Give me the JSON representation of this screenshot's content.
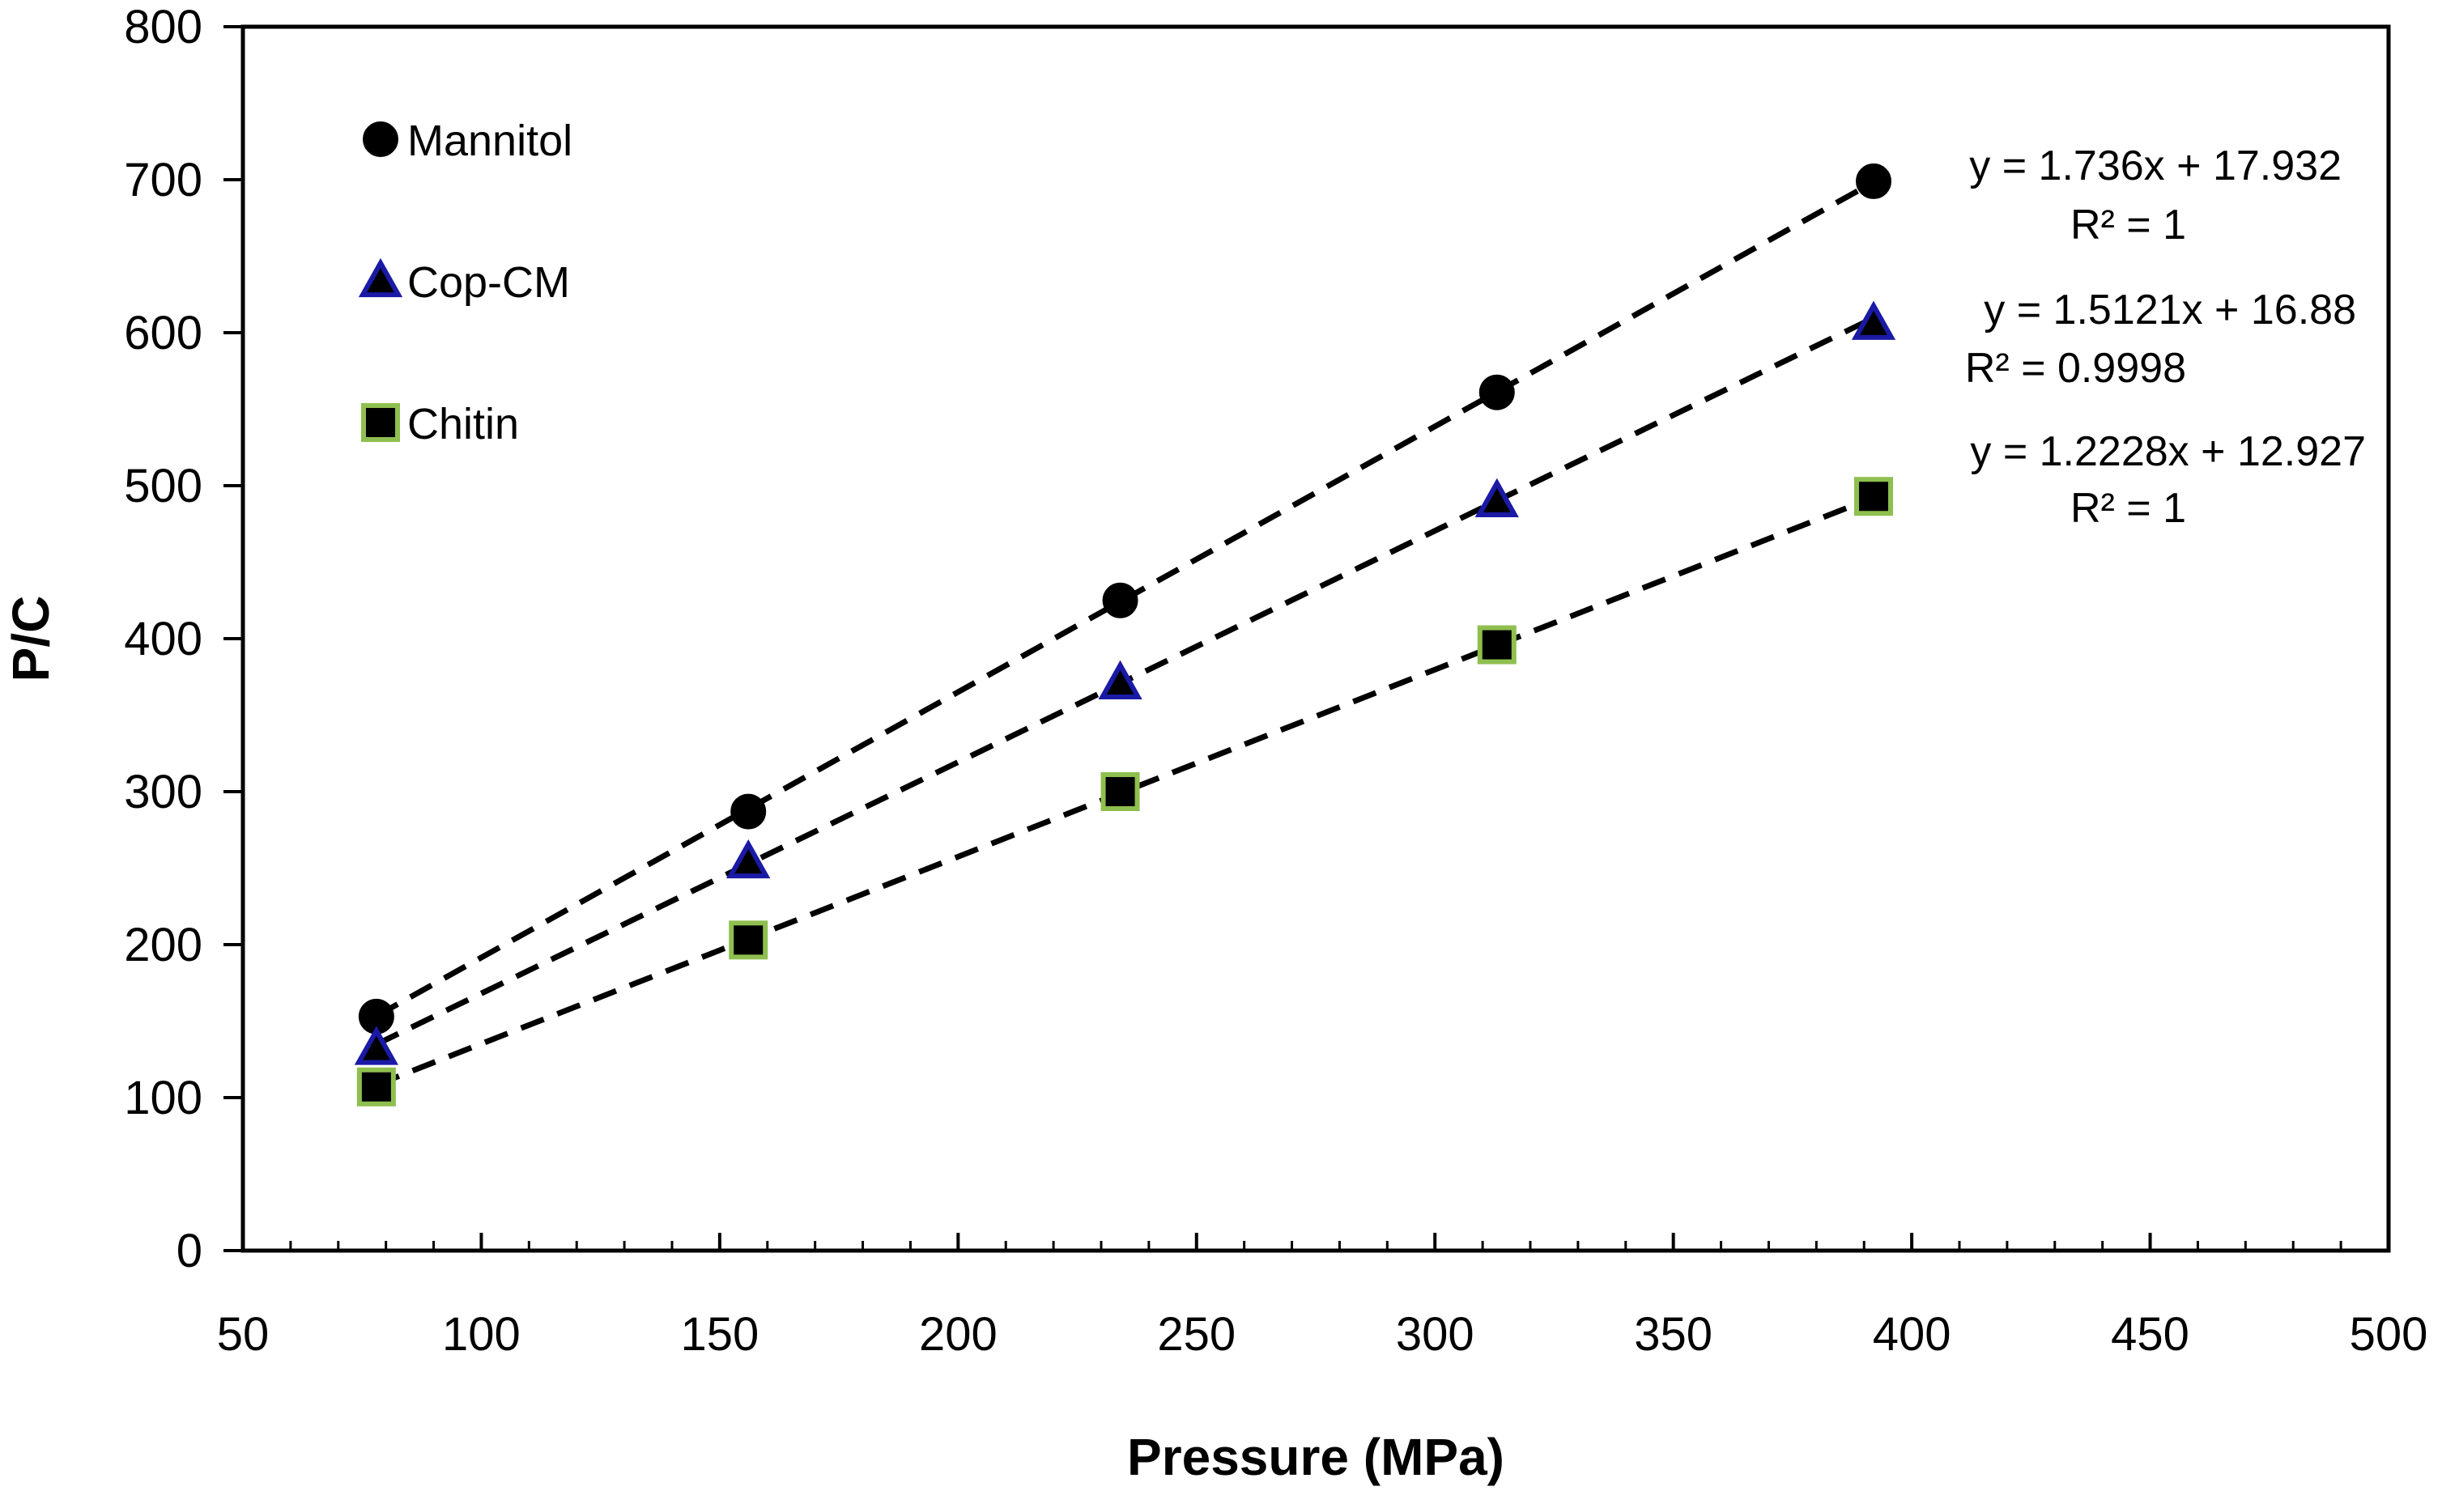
{
  "chart_data": {
    "type": "scatter",
    "title": "",
    "xlabel": "Pressure (MPa)",
    "ylabel": "P/C",
    "xlim": [
      50,
      500
    ],
    "ylim": [
      0,
      800
    ],
    "x_ticks": [
      "50",
      "100",
      "150",
      "200",
      "250",
      "300",
      "350",
      "400",
      "450",
      "500"
    ],
    "y_ticks": [
      "0",
      "100",
      "200",
      "300",
      "400",
      "500",
      "600",
      "700",
      "800"
    ],
    "grid": false,
    "legend_position": "top-left",
    "series": [
      {
        "name": "Mannitol",
        "marker": "circle",
        "color": "#000000",
        "x": [
          78,
          156,
          234,
          313,
          392
        ],
        "y": [
          153,
          287,
          425,
          561,
          699
        ],
        "trendline": {
          "slope": 1.736,
          "intercept": 17.932,
          "equation": "y = 1.736x  + 17.932",
          "r2": "R² = 1"
        }
      },
      {
        "name": "Cop-CM",
        "marker": "triangle",
        "color": "#1a1aa6",
        "x": [
          78,
          156,
          234,
          313,
          392
        ],
        "y": [
          132,
          254,
          371,
          490,
          606
        ],
        "trendline": {
          "slope": 1.5121,
          "intercept": 16.88,
          "equation": "y = 1.5121x  + 16.88",
          "r2": "R² = 0.9998"
        }
      },
      {
        "name": "Chitin",
        "marker": "square",
        "color": "#8fbf4f",
        "x": [
          78,
          156,
          234,
          313,
          392
        ],
        "y": [
          107,
          203,
          300,
          396,
          493
        ],
        "trendline": {
          "slope": 1.2228,
          "intercept": 12.927,
          "equation": "y = 1.2228x  + 12.927",
          "r2": "R² = 1"
        }
      }
    ]
  }
}
